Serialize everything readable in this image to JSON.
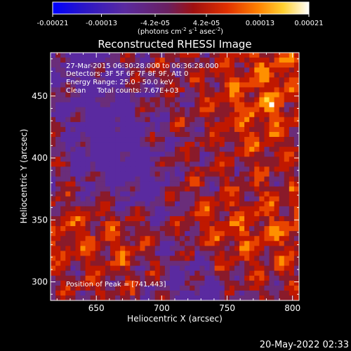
{
  "colorbar": {
    "tick_labels": [
      "-0.00021",
      "-0.00013",
      "-4.2e-05",
      "4.2e-05",
      "0.00013",
      "0.00021"
    ],
    "tick_values": [
      -0.00021,
      -0.00013,
      -4.2e-05,
      4.2e-05,
      0.00013,
      0.00021
    ],
    "range": [
      -0.00021,
      0.00021
    ],
    "units_main": "(photons cm",
    "units_sup1": "-2",
    "units_mid": " s",
    "units_sup2": "-1",
    "units_end": " asec",
    "units_sup3": "-2",
    "units_close": ")",
    "colors": [
      "#0000ff",
      "#3a1fb0",
      "#5a2aa0",
      "#6a2d7a",
      "#8a1a2a",
      "#c01800",
      "#e84400",
      "#ff9000",
      "#ffe040",
      "#ffffff"
    ]
  },
  "chart_data": {
    "type": "heatmap",
    "title": "Reconstructed RHESSI Image",
    "xlabel": "Heliocentric X (arcsec)",
    "ylabel": "Heliocentric Y (arcsec)",
    "xlim": [
      615,
      805
    ],
    "ylim": [
      285,
      485
    ],
    "x_ticks": [
      650,
      700,
      750,
      800
    ],
    "y_ticks": [
      300,
      350,
      400,
      450
    ],
    "x_tick_labels": [
      "650",
      "700",
      "750",
      "800"
    ],
    "y_tick_labels": [
      "300",
      "350",
      "400",
      "450"
    ],
    "grid": false,
    "annotations": [
      "27-Mar-2015 06:30:28.000 to 06:36:28.000",
      "Detectors: 3F 5F 6F 7F 8F 9F, Att 0",
      "Energy Range: 25.0 - 50.0 keV",
      "Clean     Total counts: 7.67E+03"
    ],
    "peak_label": "Position of Peak = [741,443]",
    "peak": [
      741,
      443
    ]
  },
  "footer": {
    "timestamp": "20-May-2022 02:33"
  }
}
